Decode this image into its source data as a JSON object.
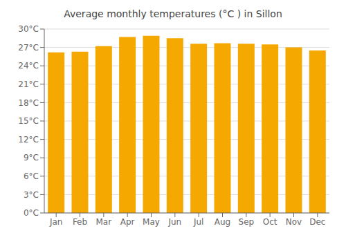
{
  "chart_data": {
    "type": "bar",
    "title": "Average monthly temperatures (°C ) in Sillon",
    "categories": [
      "Jan",
      "Feb",
      "Mar",
      "Apr",
      "May",
      "Jun",
      "Jul",
      "Aug",
      "Sep",
      "Oct",
      "Nov",
      "Dec"
    ],
    "values": [
      26.2,
      26.3,
      27.2,
      28.7,
      28.9,
      28.5,
      27.6,
      27.7,
      27.6,
      27.5,
      27.0,
      26.5
    ],
    "color": "#F5A800",
    "ylim": [
      0,
      30
    ],
    "yticks": [
      {
        "value": 0,
        "label": "0°C"
      },
      {
        "value": 3,
        "label": "3°C"
      },
      {
        "value": 6,
        "label": "6°C"
      },
      {
        "value": 9,
        "label": "9°C"
      },
      {
        "value": 12,
        "label": "12°C"
      },
      {
        "value": 15,
        "label": "15°C"
      },
      {
        "value": 18,
        "label": "18°C"
      },
      {
        "value": 21,
        "label": "21°C"
      },
      {
        "value": 24,
        "label": "24°C"
      },
      {
        "value": 27,
        "label": "27°C"
      },
      {
        "value": 30,
        "label": "30°C"
      }
    ],
    "grid": true
  }
}
